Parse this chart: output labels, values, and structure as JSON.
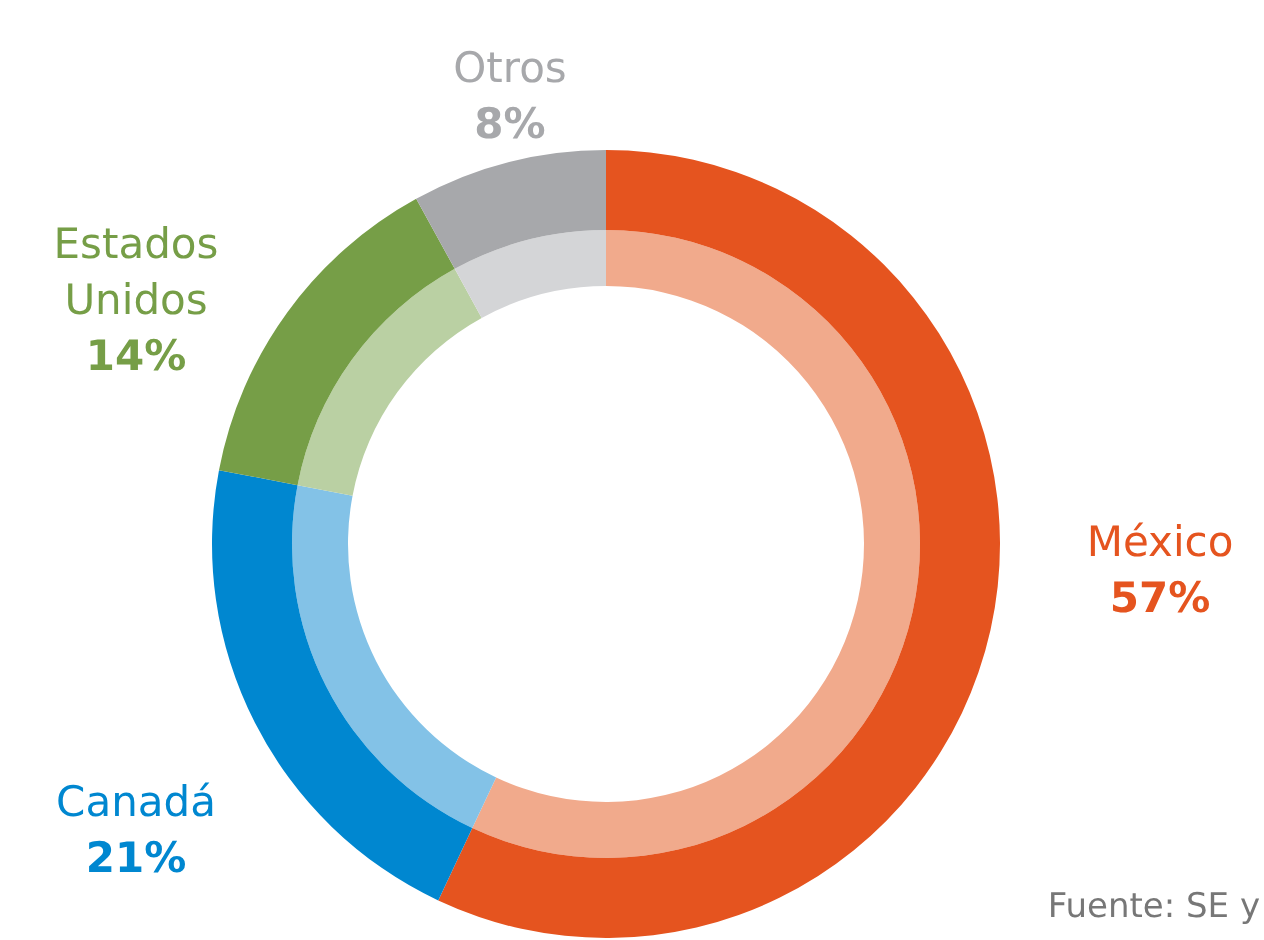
{
  "chart_data": {
    "type": "donut",
    "categories": [
      "México",
      "Canadá",
      "Estados Unidos",
      "Otros"
    ],
    "value_labels": [
      "57%",
      "21%",
      "14%",
      "8%"
    ],
    "series": [
      {
        "values": [
          57,
          21,
          14,
          8
        ],
        "colors": [
          "#f1aa8c",
          "#83c2e7",
          "#bad0a3",
          "#d4d5d7"
        ]
      },
      {
        "values": [
          57,
          21,
          14,
          8
        ],
        "colors": [
          "#e5541f",
          "#0087d0",
          "#769e47",
          "#a7a8ab"
        ]
      }
    ],
    "annotations": [
      "Fuente: SE y"
    ],
    "legend": false
  }
}
